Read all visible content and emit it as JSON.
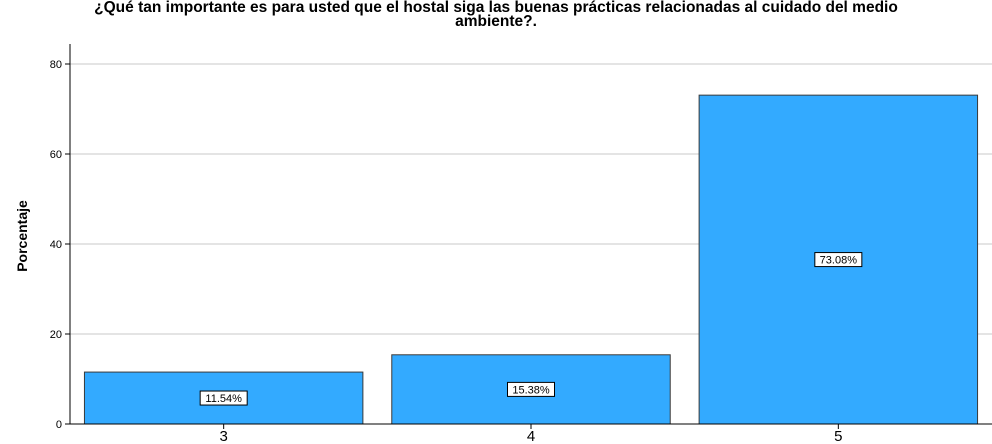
{
  "chart_data": {
    "type": "bar",
    "title": "¿Qué tan  importante es para usted que el hostal siga las buenas prácticas relacionadas al cuidado del medio\nambiente?.",
    "xlabel": "",
    "ylabel": "Porcentaje",
    "categories": [
      "3",
      "4",
      "5"
    ],
    "values": [
      11.54,
      15.38,
      73.08
    ],
    "data_labels": [
      "11.54%",
      "15.38%",
      "73.08%"
    ],
    "ylim": [
      0,
      84
    ],
    "yticks": [
      0,
      20,
      40,
      60,
      80
    ],
    "ytick_labels": [
      "0",
      "20",
      "40",
      "60",
      "80"
    ],
    "grid": true,
    "bar_color": "#33aaff",
    "bar_edge_color": "#3a3a3a"
  }
}
